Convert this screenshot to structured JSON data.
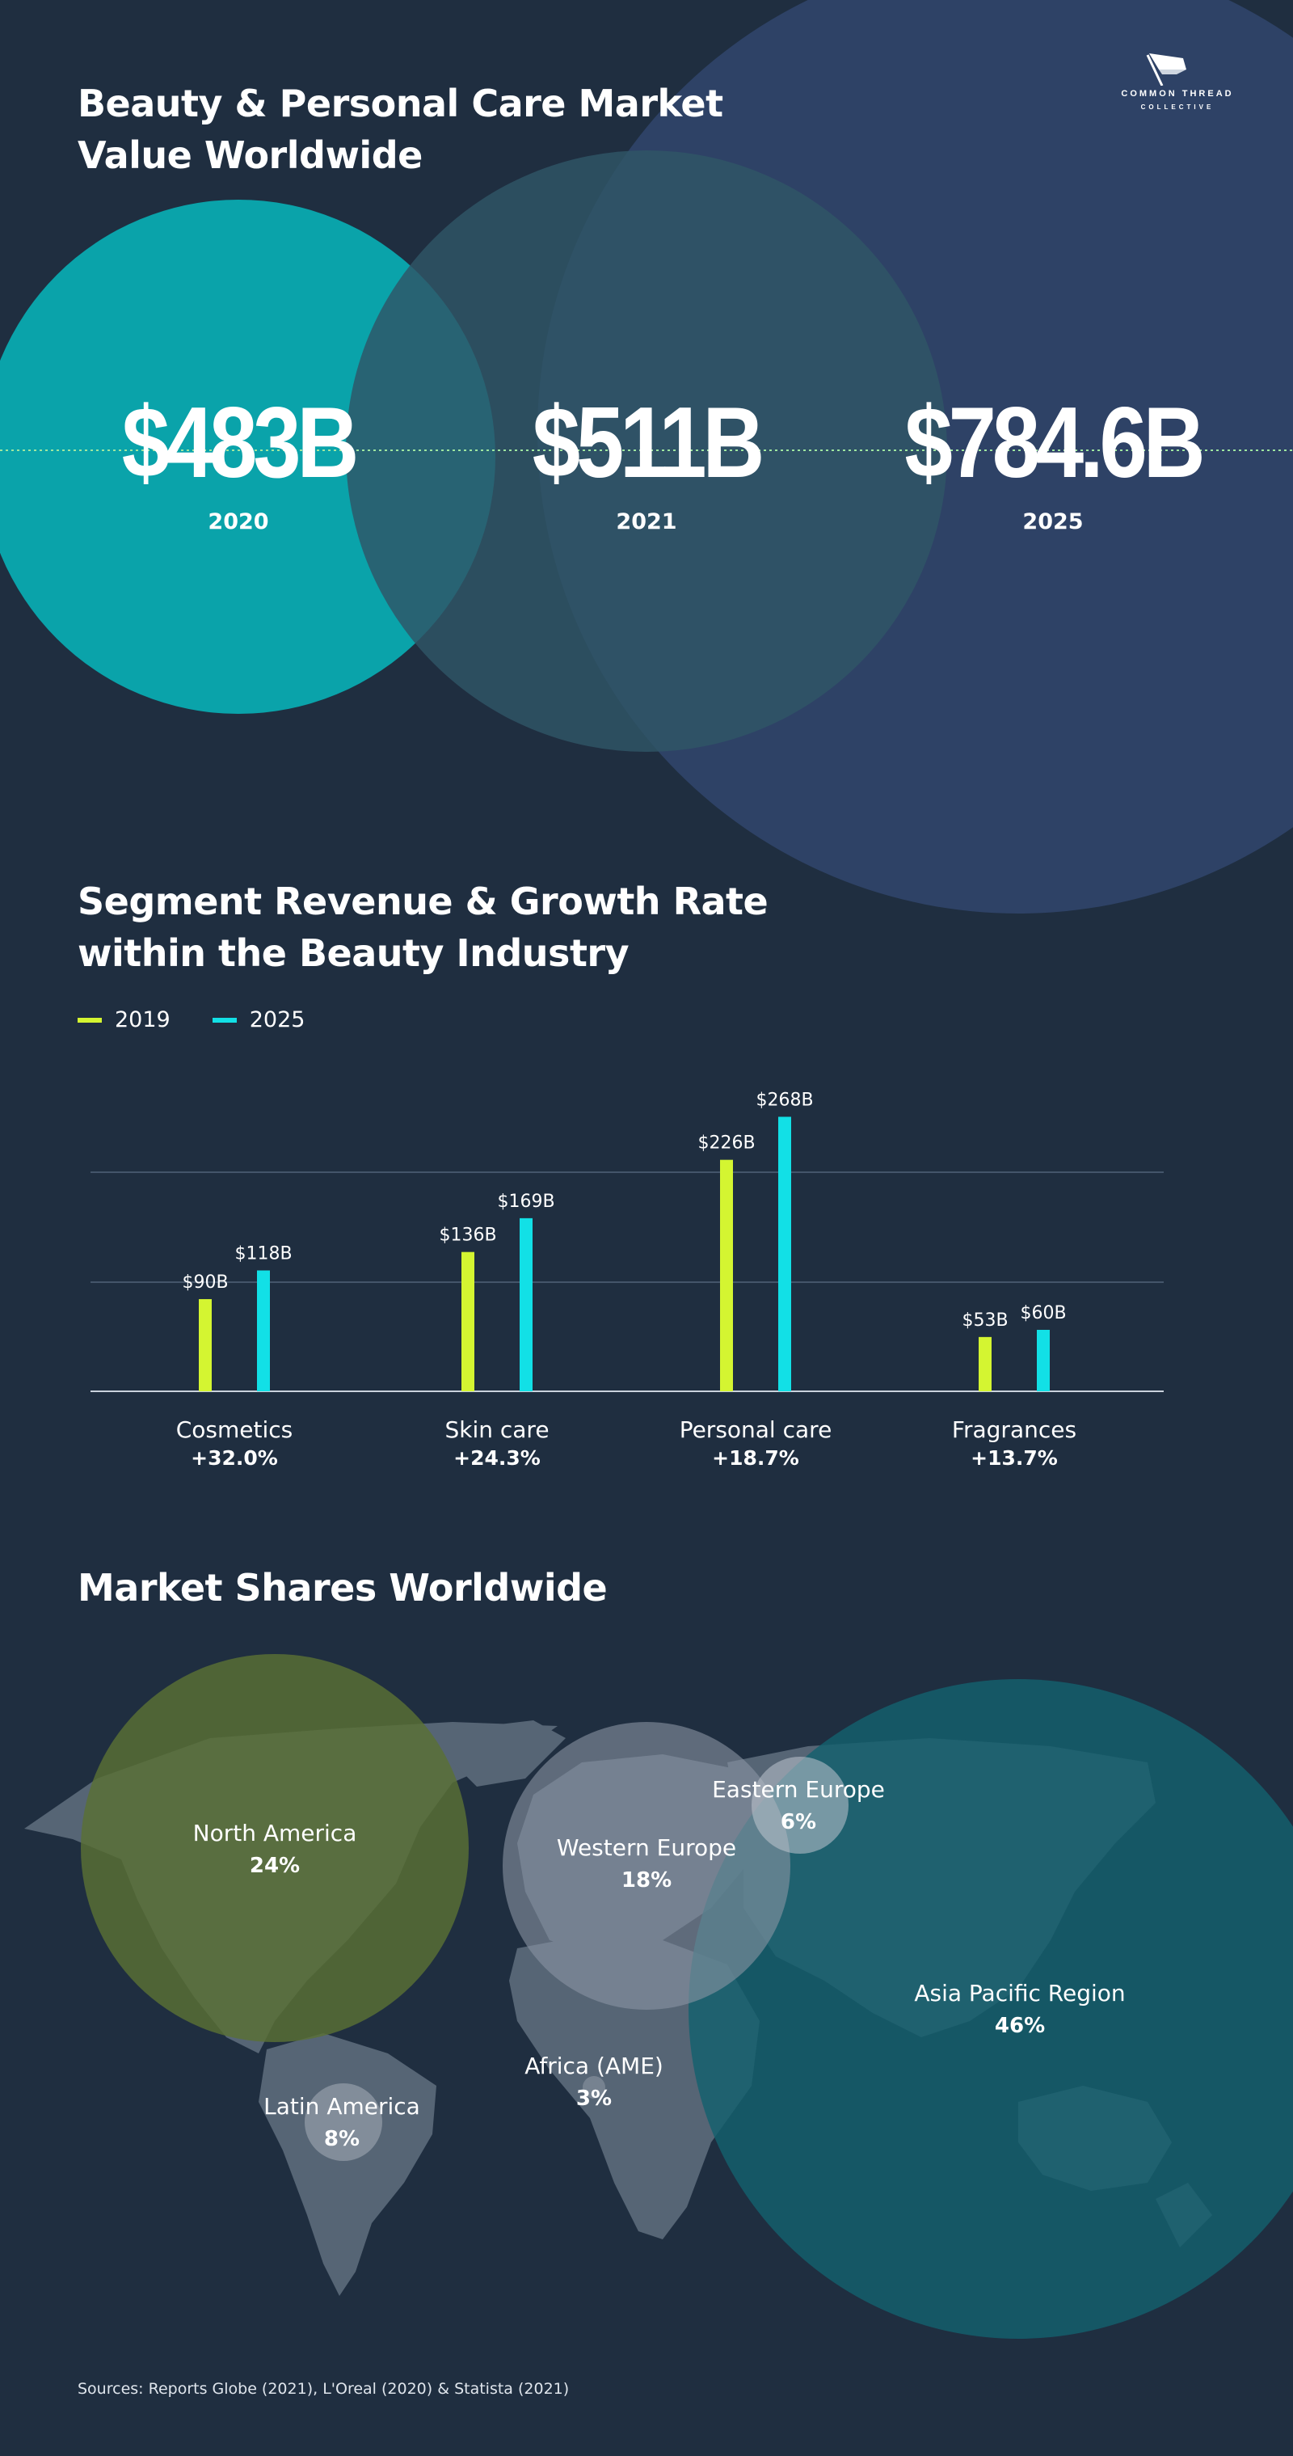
{
  "header": {
    "logo_line1": "COMMON THREAD",
    "logo_line2": "COLLECTIVE",
    "title_line1": "Beauty & Personal Care Market",
    "title_line2": "Value Worldwide"
  },
  "market_value": {
    "items": [
      {
        "value": "$483B",
        "year": "2020"
      },
      {
        "value": "$511B",
        "year": "2021"
      },
      {
        "value": "$784.6B",
        "year": "2025"
      }
    ]
  },
  "segment": {
    "title_line1": "Segment Revenue & Growth Rate",
    "title_line2": "within the Beauty Industry"
  },
  "market_shares": {
    "title": "Market Shares Worldwide",
    "regions": [
      {
        "name": "North America",
        "share": "24%"
      },
      {
        "name": "Western Europe",
        "share": "18%"
      },
      {
        "name": "Eastern Europe",
        "share": "6%"
      },
      {
        "name": "Asia Pacific Region",
        "share": "46%"
      },
      {
        "name": "Africa (AME)",
        "share": "3%"
      },
      {
        "name": "Latin America",
        "share": "8%"
      }
    ]
  },
  "colors": {
    "background": "#1f2e40",
    "series_2019": "#d4f531",
    "series_2025": "#12e0e6",
    "teal_circle": "#0aa3aa",
    "mid_circle": "#2f5566",
    "navy_circle": "#2e4266",
    "na_circle": "#5a7034",
    "ap_circle": "#14606e",
    "eu_circle": "#8b95a3"
  },
  "sources": "Sources: Reports Globe (2021), L'Oreal (2020) & Statista (2021)",
  "chart_data": [
    {
      "type": "bar",
      "title": "Beauty & Personal Care Market Value Worldwide",
      "categories": [
        "2020",
        "2021",
        "2025"
      ],
      "values": [
        483,
        511,
        784.6
      ],
      "unit": "USD billion"
    },
    {
      "type": "bar",
      "title": "Segment Revenue & Growth Rate within the Beauty Industry",
      "categories": [
        "Cosmetics",
        "Skin care",
        "Personal care",
        "Fragrances"
      ],
      "growth": [
        "+32.0%",
        "+24.3%",
        "+18.7%",
        "+13.7%"
      ],
      "series": [
        {
          "name": "2019",
          "values": [
            90,
            136,
            226,
            53
          ],
          "labels": [
            "$90B",
            "$136B",
            "$226B",
            "$53B"
          ]
        },
        {
          "name": "2025",
          "values": [
            118,
            169,
            268,
            60
          ],
          "labels": [
            "$118B",
            "$169B",
            "$268B",
            "$60B"
          ]
        }
      ],
      "ylim": [
        0,
        270
      ],
      "grid": true,
      "legend": "top-left"
    },
    {
      "type": "pie",
      "title": "Market Shares Worldwide",
      "categories": [
        "North America",
        "Western Europe",
        "Eastern Europe",
        "Asia Pacific Region",
        "Africa (AME)",
        "Latin America"
      ],
      "values": [
        24,
        18,
        6,
        46,
        3,
        8
      ],
      "unit": "%"
    }
  ]
}
